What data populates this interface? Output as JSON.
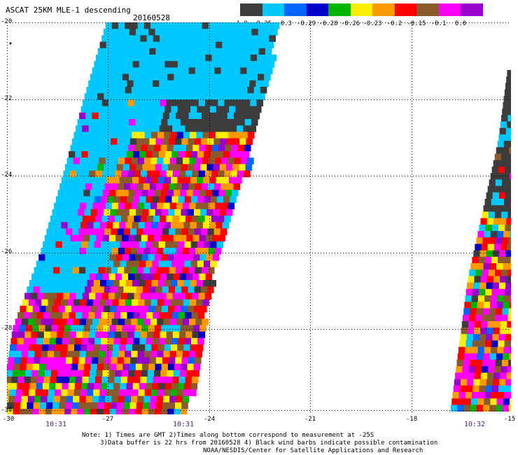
{
  "title": "ASCAT 25KM MLE-1 descending",
  "date": "20160528",
  "colorbar": {
    "labels": [
      "-1.0",
      "-0.35",
      "-0.3",
      "-0.29",
      "-0.28",
      "-0.26",
      "-0.23",
      "-0.2",
      "-0.15",
      "-0.1",
      "0.0"
    ],
    "colors": [
      "#3c3c3c",
      "#00c8ff",
      "#0066ff",
      "#0000c8",
      "#00b400",
      "#ffee00",
      "#ff9900",
      "#ff0000",
      "#8b5a2b",
      "#ff00ff",
      "#9900cc"
    ]
  },
  "axes": {
    "lat_labels": [
      "-20",
      "-22",
      "-24",
      "-26",
      "-28",
      "-30"
    ],
    "lon_labels": [
      "-30",
      "-27",
      "-24",
      "-21",
      "-18",
      "-15"
    ]
  },
  "times": [
    "10:31",
    "10:31",
    "10:32"
  ],
  "notes": [
    "Note: 1) Times are GMT 2)Times along bottom correspond to measurement at -25S",
    "3)Data buffer is 22 hrs from 20160528 4) Black wind barbs indicate possible contamination",
    "NOAA/NESDIS/Center for Satellite Applications and Research"
  ]
}
